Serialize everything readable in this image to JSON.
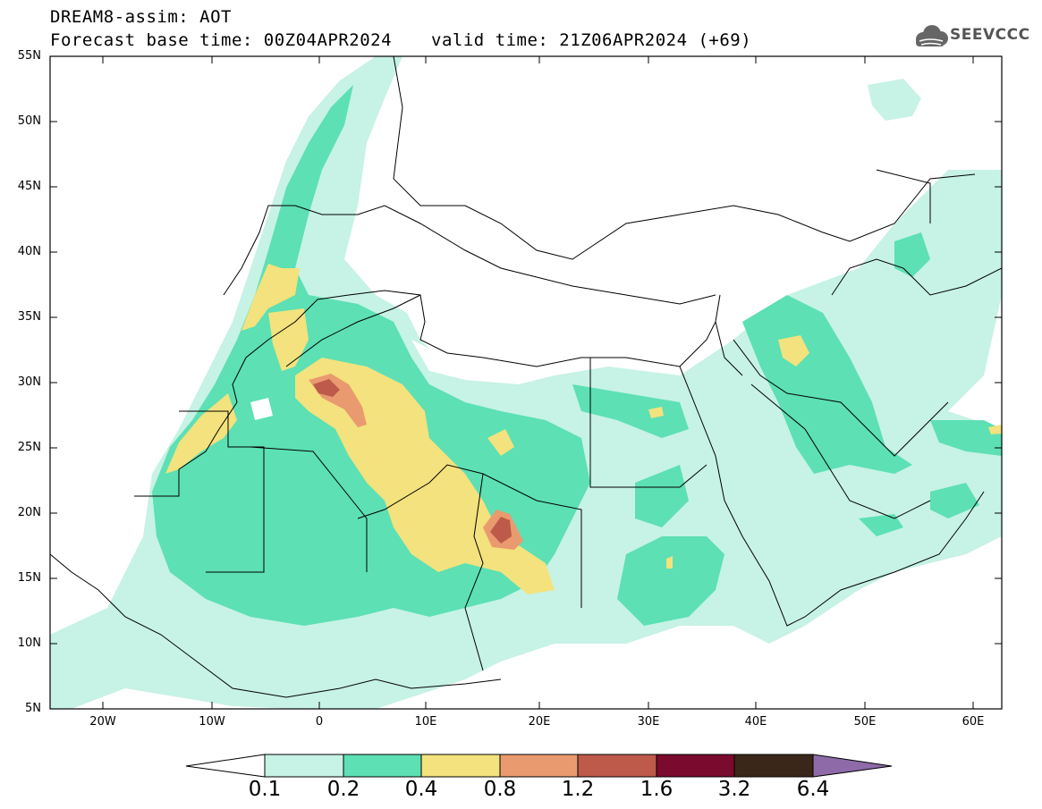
{
  "header": {
    "title": "DREAM8-assim: AOT",
    "base_time": "Forecast base time: 00Z04APR2024",
    "valid_time": "valid time: 21Z06APR2024 (+69)",
    "logo_text": "SEEVCCC"
  },
  "map": {
    "field": "AOT",
    "lat_ticks": [
      "55N",
      "50N",
      "45N",
      "40N",
      "35N",
      "30N",
      "25N",
      "20N",
      "15N",
      "10N",
      "5N"
    ],
    "lon_ticks": [
      "20W",
      "10W",
      "0",
      "10E",
      "20E",
      "30E",
      "40E",
      "50E",
      "60E"
    ],
    "extent": {
      "lon": [
        -25,
        65
      ],
      "lat": [
        5,
        55
      ]
    }
  },
  "colorbar": {
    "levels": [
      "0.1",
      "0.2",
      "0.4",
      "0.8",
      "1.2",
      "1.6",
      "3.2",
      "6.4"
    ],
    "colors": {
      "0.1-0.2": "#c7f2e6",
      "0.2-0.4": "#5ce0b4",
      "0.4-0.8": "#f3e27d",
      "0.8-1.2": "#ea9a6f",
      "1.2-1.6": "#bd5a4a",
      "1.6-3.2": "#7a0a2e",
      "3.2-6.4": "#3b2719",
      "above": "#8e6aa8"
    }
  }
}
